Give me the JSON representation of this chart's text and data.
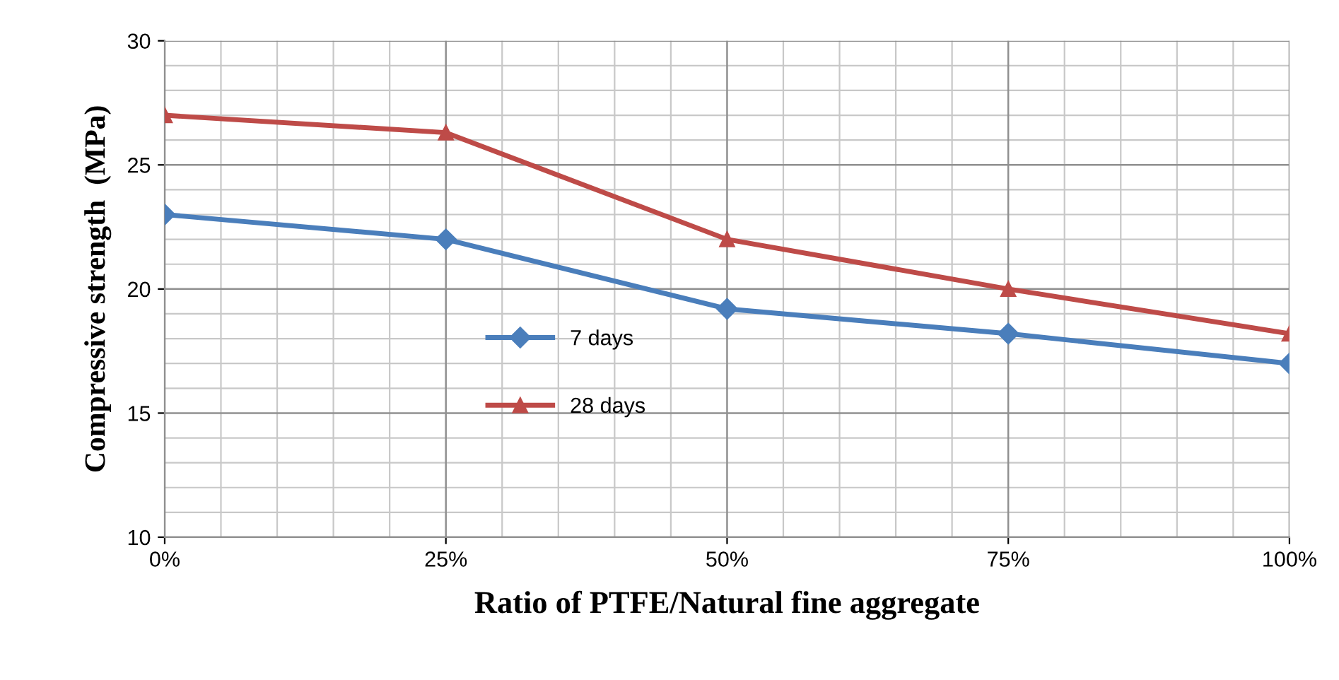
{
  "chart_data": {
    "type": "line",
    "xlabel": "Ratio of PTFE/Natural fine aggregate",
    "ylabel": "Compressive strength  (MPa)",
    "x": [
      0,
      25,
      50,
      75,
      100
    ],
    "series": [
      {
        "name": "7 days",
        "color": "#4a7ebb",
        "values": [
          23,
          22,
          19.2,
          18.2,
          17
        ],
        "marker": "diamond"
      },
      {
        "name": "28 days",
        "color": "#be4b48",
        "values": [
          27,
          26.3,
          22,
          20,
          18.2
        ],
        "marker": "triangle"
      }
    ],
    "xlim": [
      0,
      100
    ],
    "xticks": [
      {
        "value": 0,
        "label": "0%"
      },
      {
        "value": 25,
        "label": "25%"
      },
      {
        "value": 50,
        "label": "50%"
      },
      {
        "value": 75,
        "label": "75%"
      },
      {
        "value": 100,
        "label": "100%"
      }
    ],
    "ylim": [
      10,
      30
    ],
    "yticks": [
      10,
      15,
      20,
      25,
      30
    ],
    "grid": true,
    "legend": "center left",
    "line_style": "solid"
  }
}
